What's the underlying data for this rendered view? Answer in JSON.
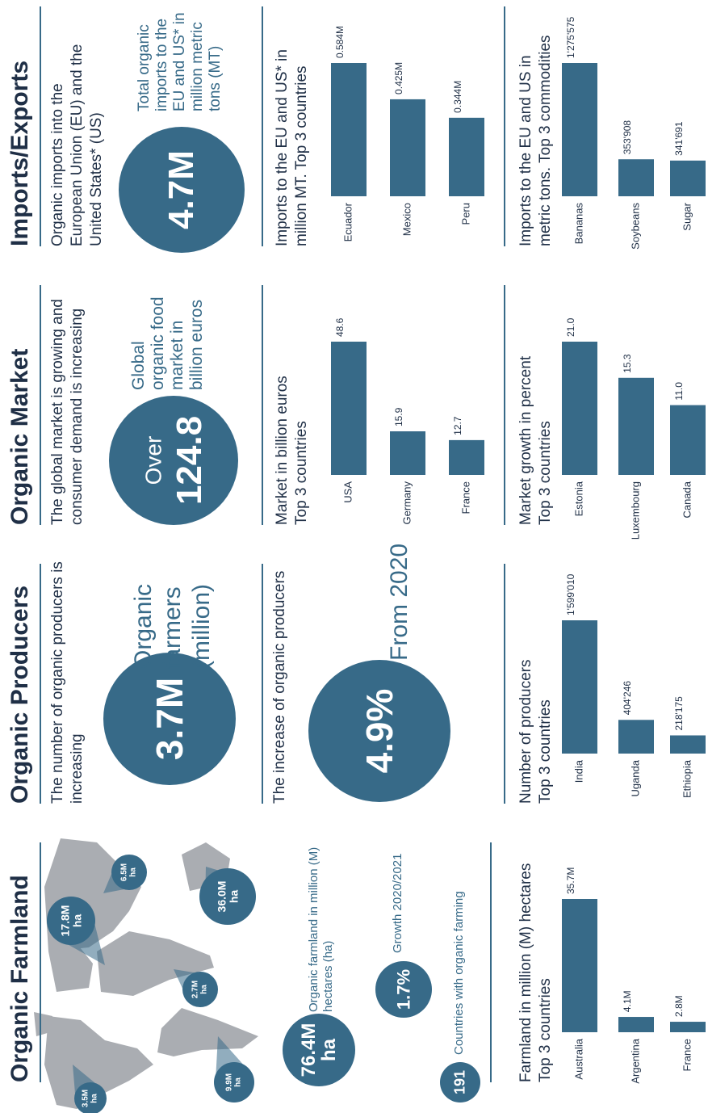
{
  "sections": [
    {
      "title": "Organic Farmland",
      "map_labels": [
        "3.5M ha",
        "9.9M ha",
        "2.7M ha",
        "17.8M ha",
        "36.0M ha",
        "6.5M ha"
      ],
      "stats": [
        {
          "value": "76.4M ha",
          "label": "Organic farmland in million (M) hectares (ha)"
        },
        {
          "value": "1.7%",
          "label": "Growth 2020/2021"
        },
        {
          "value": "191",
          "label": "Countries with organic farming"
        }
      ]
    },
    {
      "title": "Organic Producers",
      "description": "The number of organic producers is increasing",
      "highlight": "3.7M",
      "highlight_label": "Organic farmers (million)",
      "description2": "The increase of organic producers",
      "highlight2": "4.9%",
      "highlight2_label": "From 2020"
    },
    {
      "title": "Organic Market",
      "description": "The global market is growing and consumer demand is increasing",
      "highlight_prefix": "Over",
      "highlight": "124.8",
      "highlight_label": "Global organic food market in billion euros"
    },
    {
      "title": "Imports/Exports",
      "description": "Organic imports into the European Union (EU) and the United States* (US)",
      "highlight": "4.7M",
      "highlight_label": "Total organic imports to the EU and US* in million metric tons (MT)"
    }
  ],
  "chart_data": [
    {
      "type": "bar",
      "title": "Farmland in million (M) hectares\nTop 3 countries",
      "color": "#376a88",
      "categories": [
        "Australia",
        "Argentina",
        "France"
      ],
      "values": [
        35.7,
        4.1,
        2.8
      ],
      "value_labels": [
        "35.7M",
        "4.1M",
        "2.8M"
      ]
    },
    {
      "type": "bar",
      "title": "Number of producers\nTop 3 countries",
      "color": "#376a88",
      "categories": [
        "India",
        "Uganda",
        "Ethiopia"
      ],
      "values": [
        1599010,
        404246,
        218175
      ],
      "value_labels": [
        "1'599'010",
        "404'246",
        "218'175"
      ]
    },
    {
      "type": "bar",
      "title": "Market in billion euros\nTop 3 countries",
      "color": "#376a88",
      "categories": [
        "USA",
        "Germany",
        "France"
      ],
      "values": [
        48.6,
        15.9,
        12.7
      ]
    },
    {
      "type": "bar",
      "title": "Market growth in percent\nTop 3 countries",
      "color": "#376a88",
      "categories": [
        "Estonia",
        "Luxembourg",
        "Canada"
      ],
      "values": [
        21,
        15.3,
        11
      ],
      "value_labels": [
        "21.0",
        "15.3",
        "11.0"
      ]
    },
    {
      "type": "bar",
      "title": "Imports to the EU and US* in\nmillion MT. Top 3 countries",
      "color": "#376a88",
      "categories": [
        "Ecuador",
        "Mexico",
        "Peru"
      ],
      "values": [
        0.584,
        0.425,
        0.344
      ],
      "value_labels": [
        "0.584M",
        "0.425M",
        "0.344M"
      ]
    },
    {
      "type": "bar",
      "title": "Imports to the EU and US in\nmetric tons. Top 3 commodities",
      "color": "#376a88",
      "categories": [
        "Bananas",
        "Soybeans",
        "Sugar"
      ],
      "values": [
        1275575,
        353908,
        341691
      ],
      "value_labels": [
        "1'275'575",
        "353'908",
        "341'691"
      ]
    }
  ]
}
